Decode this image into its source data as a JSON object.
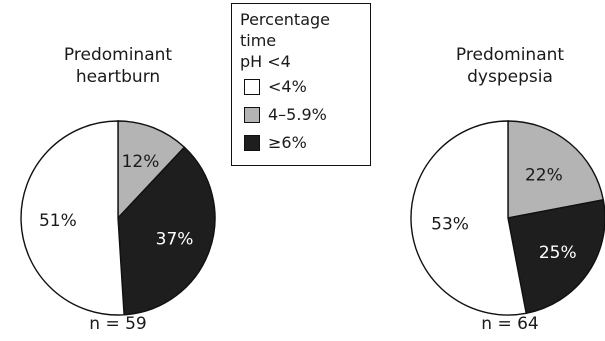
{
  "chart_data": [
    {
      "type": "pie",
      "title": "Predominant heartburn",
      "title_lines": [
        "Predominant",
        "heartburn"
      ],
      "n_label": "n = 59",
      "slices": [
        {
          "category": "4–5.9%",
          "value": 12,
          "label": "12%",
          "color": "#b4b4b4"
        },
        {
          "category": "≥6%",
          "value": 37,
          "label": "37%",
          "color": "#1e1e1e"
        },
        {
          "category": "<4%",
          "value": 51,
          "label": "51%",
          "color": "#ffffff"
        }
      ]
    },
    {
      "type": "pie",
      "title": "Predominant dyspepsia",
      "title_lines": [
        "Predominant",
        "dyspepsia"
      ],
      "n_label": "n = 64",
      "slices": [
        {
          "category": "4–5.9%",
          "value": 22,
          "label": "22%",
          "color": "#b4b4b4"
        },
        {
          "category": "≥6%",
          "value": 25,
          "label": "25%",
          "color": "#1e1e1e"
        },
        {
          "category": "<4%",
          "value": 53,
          "label": "53%",
          "color": "#ffffff"
        }
      ]
    }
  ],
  "legend": {
    "title_lines": [
      "Percentage time",
      "pH <4"
    ],
    "items": [
      {
        "label": "<4%",
        "color": "#ffffff"
      },
      {
        "label": "4–5.9%",
        "color": "#b4b4b4"
      },
      {
        "label": "≥6%",
        "color": "#1e1e1e"
      }
    ]
  }
}
